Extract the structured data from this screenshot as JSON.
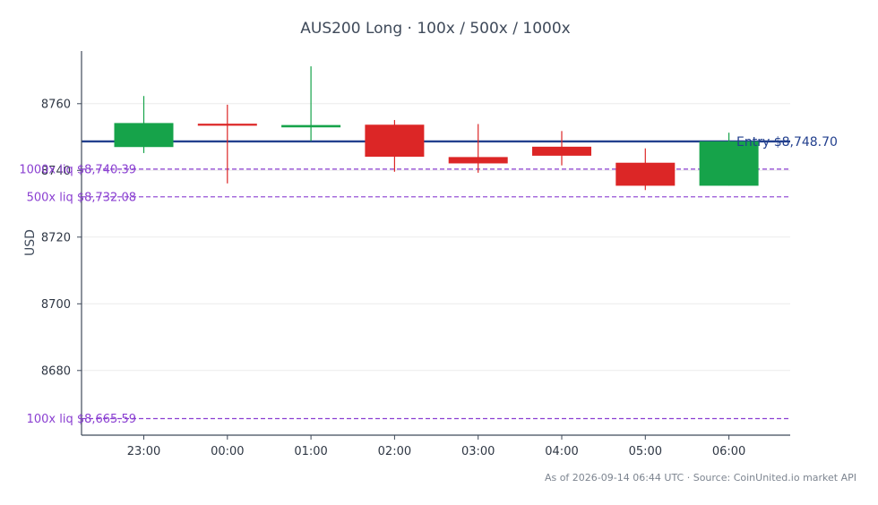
{
  "chart_data": {
    "type": "candlestick",
    "title": "AUS200 Long · 100x / 500x / 1000x",
    "xlabel": "",
    "ylabel": "USD",
    "ylim": [
      8659.5,
      8775
    ],
    "yticks": [
      8680,
      8700,
      8720,
      8740,
      8760
    ],
    "grid": true,
    "categories": [
      "23:00",
      "00:00",
      "01:00",
      "02:00",
      "03:00",
      "04:00",
      "05:00",
      "06:00"
    ],
    "candles": [
      {
        "time": "23:00",
        "open": 8747.0,
        "high": 8762.3,
        "low": 8745.2,
        "close": 8754.2
      },
      {
        "time": "00:00",
        "open": 8754.0,
        "high": 8759.7,
        "low": 8736.1,
        "close": 8753.4
      },
      {
        "time": "01:00",
        "open": 8752.9,
        "high": 8771.2,
        "low": 8748.8,
        "close": 8753.6
      },
      {
        "time": "02:00",
        "open": 8753.7,
        "high": 8755.1,
        "low": 8739.6,
        "close": 8744.1
      },
      {
        "time": "03:00",
        "open": 8744.0,
        "high": 8753.9,
        "low": 8739.3,
        "close": 8742.1
      },
      {
        "time": "04:00",
        "open": 8747.1,
        "high": 8751.8,
        "low": 8741.5,
        "close": 8744.4
      },
      {
        "time": "05:00",
        "open": 8742.3,
        "high": 8746.6,
        "low": 8734.1,
        "close": 8735.4
      },
      {
        "time": "06:00",
        "open": 8735.4,
        "high": 8751.3,
        "low": 8735.4,
        "close": 8748.7
      }
    ],
    "colors": {
      "up": "#16a34a",
      "down": "#dc2626",
      "entry": "#23408e",
      "liq": "#8a3fd1"
    },
    "entry": {
      "label": "Entry $8,748.70",
      "value": 8748.7
    },
    "liquidations": [
      {
        "label": "1000x liq $8,740.39",
        "value": 8740.39
      },
      {
        "label": "500x liq $8,732.08",
        "value": 8732.08
      },
      {
        "label": "100x liq $8,665.59",
        "value": 8665.59
      }
    ]
  },
  "footer": "As of 2026-09-14 06:44 UTC · Source: CoinUnited.io market API"
}
